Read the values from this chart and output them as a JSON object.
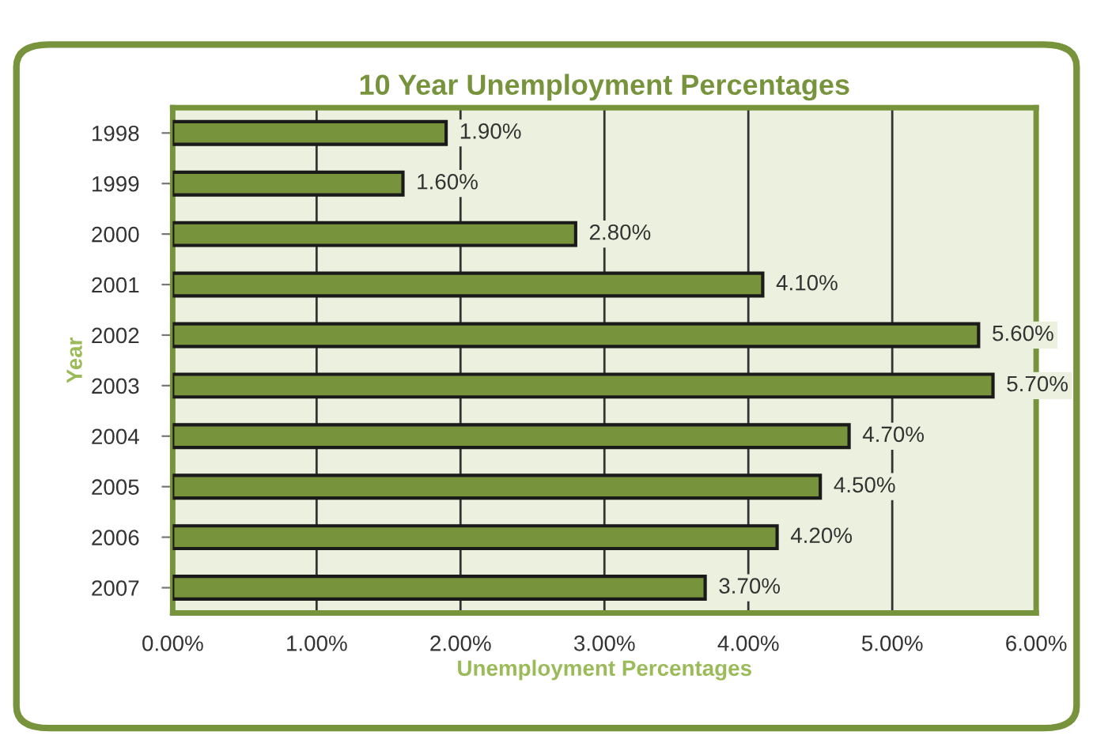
{
  "chart_data": {
    "type": "bar",
    "orientation": "horizontal",
    "title": "10 Year Unemployment Percentages",
    "xlabel": "Unemployment Percentages",
    "ylabel": "Year",
    "categories": [
      "1998",
      "1999",
      "2000",
      "2001",
      "2002",
      "2003",
      "2004",
      "2005",
      "2006",
      "2007"
    ],
    "values": [
      1.9,
      1.6,
      2.8,
      4.1,
      5.6,
      5.7,
      4.7,
      4.5,
      4.2,
      3.7
    ],
    "value_labels": [
      "1.90%",
      "1.60%",
      "2.80%",
      "4.10%",
      "5.60%",
      "5.70%",
      "4.70%",
      "4.50%",
      "4.20%",
      "3.70%"
    ],
    "color": "#77933c",
    "xlim": [
      0,
      6
    ],
    "xticks": [
      {
        "value": 0,
        "label": "0.00%"
      },
      {
        "value": 1,
        "label": "1.00%"
      },
      {
        "value": 2,
        "label": "2.00%"
      },
      {
        "value": 3,
        "label": "3.00%"
      },
      {
        "value": 4,
        "label": "4.00%"
      },
      {
        "value": 5,
        "label": "5.00%"
      },
      {
        "value": 6,
        "label": "6.00%"
      }
    ],
    "grid": "x",
    "legend": false
  }
}
